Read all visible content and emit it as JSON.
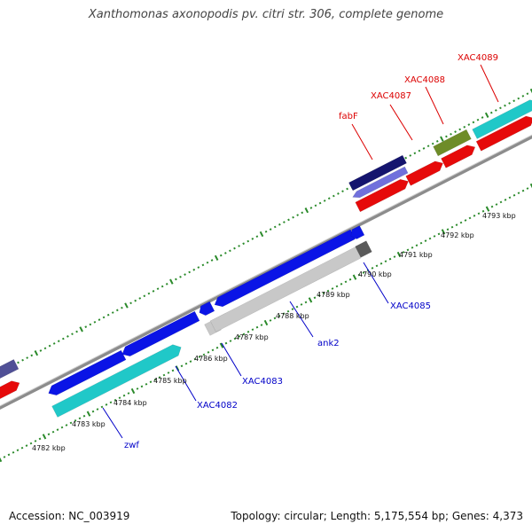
{
  "title": "Xanthomonas axonopodis pv. citri str. 306, complete genome",
  "footer": {
    "accession": "Accession: NC_003919",
    "summary": "Topology: circular; Length: 5,175,554 bp; Genes: 4,373"
  },
  "colors": {
    "backbone": "#8c8c8c",
    "ruler_tick": "#2a8a2a",
    "blue_gene": "#0a14e6",
    "cyan_gene": "#20c8c8",
    "red_gene": "#e60a0a",
    "grey_gene": "#c8c8c8",
    "navy_gene": "#14146e",
    "lavender_gene": "#7070dc",
    "olive_gene": "#6e8c28",
    "dark_grey_gene": "#5a5a5a",
    "purple_gene": "#505096",
    "label_blue": "#0000c8",
    "label_red": "#dc0000"
  },
  "ruler_labels": [
    "4782 kbp",
    "4783 kbp",
    "4784 kbp",
    "4785 kbp",
    "4786 kbp",
    "4787 kbp",
    "4788 kbp",
    "4789 kbp",
    "4790 kbp",
    "4791 kbp",
    "4792 kbp",
    "4793 kbp"
  ],
  "gene_labels": {
    "zwf": "zwf",
    "xac4082": "XAC4082",
    "xac4083": "XAC4083",
    "ank2": "ank2",
    "xac4085": "XAC4085",
    "fabf": "fabF",
    "xac4087": "XAC4087",
    "xac4088": "XAC4088",
    "xac4089": "XAC4089"
  }
}
